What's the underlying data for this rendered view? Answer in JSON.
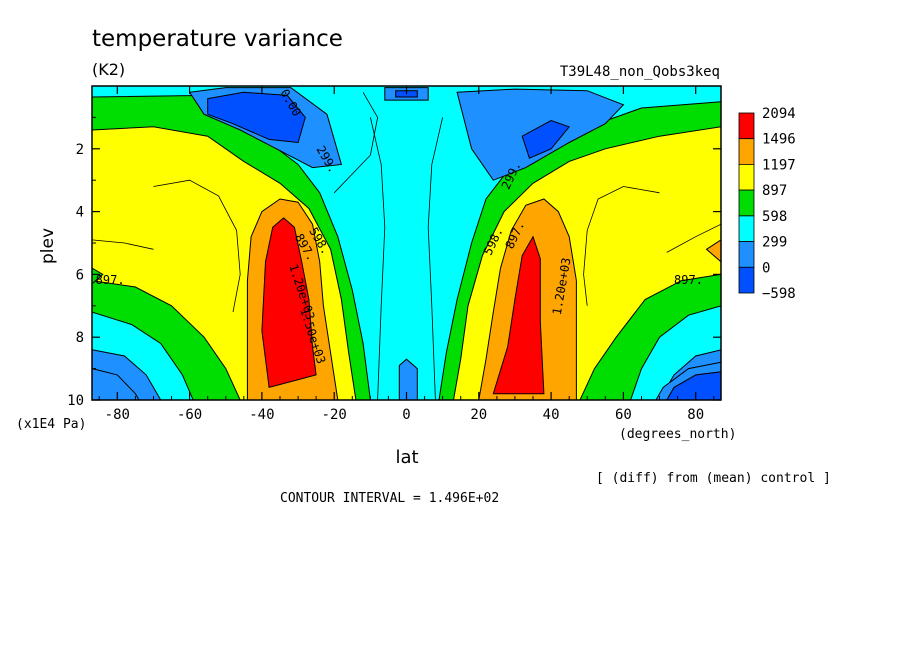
{
  "chart_data": {
    "type": "heatmap",
    "title": "temperature variance",
    "units": "(K2)",
    "run_label": "T39L48_non_Qobs3keq",
    "xlabel": "lat",
    "x_units": "(degrees_north)",
    "ylabel": "plev",
    "y_units": "(x1E4 Pa)",
    "xlim": [
      -87,
      87
    ],
    "ylim": [
      0,
      10
    ],
    "y_inverted": true,
    "x_ticks": [
      "-80",
      "-60",
      "-40",
      "-20",
      "0",
      "20",
      "40",
      "60",
      "80"
    ],
    "x_tick_values": [
      -80,
      -60,
      -40,
      -20,
      0,
      20,
      40,
      60,
      80
    ],
    "y_ticks": [
      "2",
      "4",
      "6",
      "8",
      "10"
    ],
    "y_tick_values": [
      2,
      4,
      6,
      8,
      10
    ],
    "legend": {
      "placement": "right",
      "levels": [
        "2094",
        "1496",
        "1197",
        "897",
        "598",
        "299",
        "0",
        "−598"
      ],
      "colors": [
        "#ff0000",
        "#ffa500",
        "#ffff00",
        "#00dd00",
        "#00ffff",
        "#1e90ff",
        "#0050ff"
      ]
    },
    "fill_levels": [
      -598,
      0,
      299,
      598,
      897,
      1197,
      1496,
      2094
    ],
    "contour_labels": [
      {
        "text": "0.00",
        "lat": -33,
        "p": 0.6
      },
      {
        "text": "299.",
        "lat": -23,
        "p": 2.4
      },
      {
        "text": "299.",
        "lat": 30,
        "p": 2.9
      },
      {
        "text": "598.",
        "lat": -25,
        "p": 5.0
      },
      {
        "text": "897.",
        "lat": -29,
        "p": 5.2
      },
      {
        "text": "1.20e+03",
        "lat": -30,
        "p": 6.6
      },
      {
        "text": "1.50e+03",
        "lat": -27,
        "p": 8.0
      },
      {
        "text": "598.",
        "lat": 25,
        "p": 5.0
      },
      {
        "text": "897.",
        "lat": 31,
        "p": 4.8
      },
      {
        "text": "1.20e+03",
        "lat": 44,
        "p": 6.4
      },
      {
        "text": "897.",
        "lat": -82,
        "p": 6.3
      },
      {
        "text": "897.",
        "lat": 78,
        "p": 6.3
      }
    ],
    "annotations": {
      "diff_note": "[ (diff) from (mean) control ]",
      "contour_interval": "CONTOUR INTERVAL = 1.496E+02"
    }
  }
}
